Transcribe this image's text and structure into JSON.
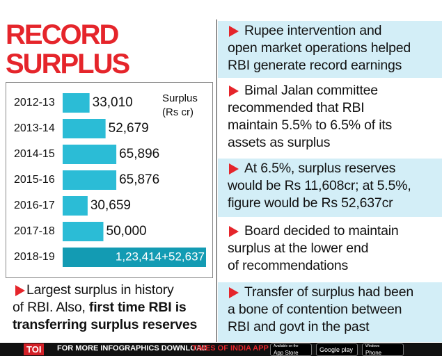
{
  "header": {
    "title": [
      "RECORD",
      "SURPLUS"
    ]
  },
  "chart_data": {
    "type": "bar",
    "orientation": "horizontal",
    "categories": [
      "2012-13",
      "2013-14",
      "2014-15",
      "2015-16",
      "2016-17",
      "2017-18",
      "2018-19"
    ],
    "values": [
      33010,
      52679,
      65896,
      65876,
      30659,
      50000,
      176051
    ],
    "value_labels": [
      "33,010",
      "52,679",
      "65,896",
      "65,876",
      "30,659",
      "50,000",
      "1,23,414+52,637"
    ],
    "colors": [
      "#2bbcd6",
      "#2bbcd6",
      "#2bbcd6",
      "#2bbcd6",
      "#2bbcd6",
      "#2bbcd6",
      "#139bb3"
    ],
    "unit_label": [
      "Surplus",
      "(Rs cr)"
    ]
  },
  "note": {
    "text": [
      "Largest surplus in history",
      "of RBI. Also,"
    ],
    "bold": [
      "first time RBI is",
      "transferring surplus reserves"
    ]
  },
  "points": [
    [
      "Rupee intervention and",
      "open market operations helped",
      "RBI generate record earnings"
    ],
    [
      "Bimal Jalan committee",
      "recommended that RBI",
      "maintain 5.5% to 6.5% of its",
      "assets as surplus"
    ],
    [
      "At 6.5%, surplus reserves",
      "would be Rs 11,608cr; at 5.5%,",
      "figure would be Rs 52,637cr"
    ],
    [
      "Board decided to maintain",
      "surplus at the lower end",
      "of recommendations"
    ],
    [
      "Transfer of surplus had been",
      "a bone of contention between",
      "RBI and govt in the past"
    ]
  ],
  "footer": {
    "logo": "TOI",
    "text": "FOR MORE INFOGRAPHICS DOWNLOAD",
    "app": "TIMES OF INDIA APP",
    "badges": [
      [
        "Available on the",
        "App Store"
      ],
      [
        "Google play"
      ],
      [
        "Windows",
        "Phone"
      ]
    ]
  }
}
